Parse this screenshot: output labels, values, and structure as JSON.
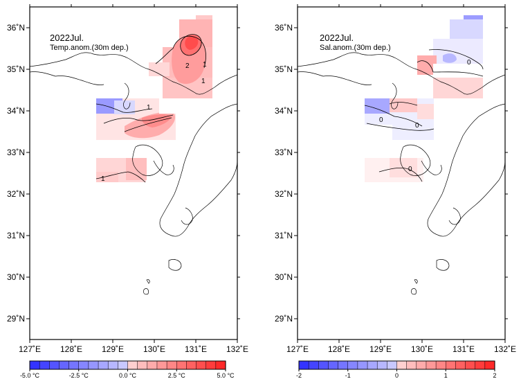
{
  "maps": [
    {
      "id": "temp",
      "title": "2022Jul.",
      "subtitle": "Temp.anom.(30m dep.)",
      "contour_labels": [
        "2",
        "1",
        "1",
        "1",
        "1"
      ],
      "colorbar_labels": [
        "-5.0 °C",
        "-2.5 °C",
        "0.0 °C",
        "2.5 °C",
        "5.0 °C"
      ]
    },
    {
      "id": "sal",
      "title": "2022Jul.",
      "subtitle": "Sal.anom.(30m dep.)",
      "contour_labels": [
        "0",
        "0",
        "0",
        "0"
      ],
      "colorbar_labels": [
        "-2",
        "-1",
        "0",
        "1",
        "2"
      ]
    }
  ],
  "axes": {
    "x_ticks": [
      "127˚E",
      "128˚E",
      "129˚E",
      "130˚E",
      "131˚E",
      "132˚E"
    ],
    "y_ticks": [
      "36˚N",
      "35˚N",
      "34˚N",
      "33˚N",
      "32˚N",
      "31˚N",
      "30˚N",
      "29˚N"
    ],
    "lon_range": [
      127,
      132
    ],
    "lat_range": [
      28.5,
      36.5
    ]
  },
  "colors": {
    "neg_strong": "#2b2bff",
    "neg_light": "#c8c8ff",
    "neutral": "#ffffff",
    "pos_light": "#ffd0d0",
    "pos_strong": "#ff2020"
  }
}
